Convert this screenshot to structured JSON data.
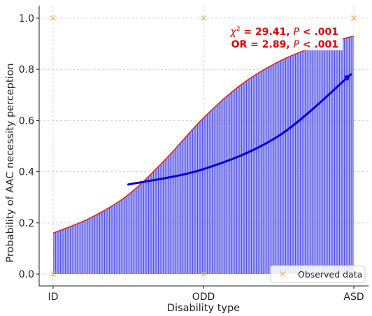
{
  "chart_data": {
    "type": "area",
    "xlabel": "Disability type",
    "ylabel": "Probability of AAC necessity perception",
    "categories": [
      "ID",
      "ODD",
      "ASD"
    ],
    "x_ticks": [
      "ID",
      "ODD",
      "ASD"
    ],
    "y_ticks": [
      "0.0",
      "0.2",
      "0.4",
      "0.6",
      "0.8",
      "1.0"
    ],
    "ylim": [
      -0.02,
      1.05
    ],
    "xlim": [
      -0.1,
      2.1
    ],
    "grid": true,
    "fitted_curve": {
      "x": [
        0,
        0.25,
        0.5,
        0.75,
        1.0,
        1.25,
        1.5,
        1.75,
        2.0
      ],
      "y": [
        0.16,
        0.22,
        0.31,
        0.45,
        0.61,
        0.74,
        0.83,
        0.89,
        0.93
      ],
      "color": "#d62728"
    },
    "fill_color": "#7b7bf0",
    "observed_data": {
      "name": "Observed data",
      "x": [
        0,
        0,
        1,
        1,
        2,
        2
      ],
      "y": [
        0,
        1,
        0,
        1,
        0,
        1
      ],
      "color": "#e8b53a"
    },
    "trend_arrow": {
      "x": [
        0.5,
        1.0,
        1.5,
        1.98
      ],
      "y": [
        0.35,
        0.41,
        0.54,
        0.78
      ],
      "color": "#0000dd"
    },
    "annotations": [
      {
        "prefix": "χ",
        "sup": "2",
        "mid": " = 29.41, ",
        "italic": "P",
        "suffix": " < .001"
      },
      {
        "prefix": "OR = 2.89, ",
        "sup": "",
        "mid": "",
        "italic": "P",
        "suffix": " < .001"
      }
    ],
    "legend": {
      "placement": "lower-right",
      "entries": [
        "Observed data"
      ]
    }
  }
}
